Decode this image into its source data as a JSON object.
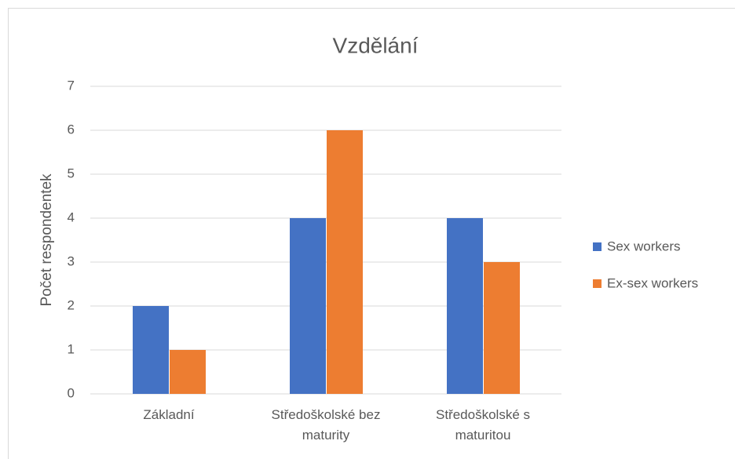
{
  "chart_data": {
    "type": "bar",
    "title": "Vzdělání",
    "y_label": "Počet respondentek",
    "categories": [
      "Základní",
      "Středoškolské bez maturity",
      "Středoškolské s maturitou"
    ],
    "series": [
      {
        "name": "Sex workers",
        "color": "#4472c4",
        "values": [
          2,
          4,
          4
        ]
      },
      {
        "name": "Ex-sex workers",
        "color": "#ed7d31",
        "values": [
          1,
          6,
          3
        ]
      }
    ],
    "ylim": [
      0,
      7
    ],
    "yticks": [
      0,
      1,
      2,
      3,
      4,
      5,
      6,
      7
    ],
    "grid": true,
    "legend": "right"
  }
}
